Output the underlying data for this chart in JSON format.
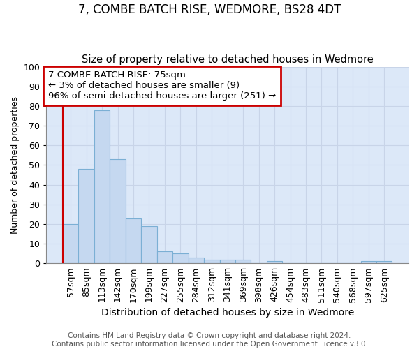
{
  "title": "7, COMBE BATCH RISE, WEDMORE, BS28 4DT",
  "subtitle": "Size of property relative to detached houses in Wedmore",
  "xlabel": "Distribution of detached houses by size in Wedmore",
  "ylabel": "Number of detached properties",
  "categories": [
    "57sqm",
    "85sqm",
    "113sqm",
    "142sqm",
    "170sqm",
    "199sqm",
    "227sqm",
    "255sqm",
    "284sqm",
    "312sqm",
    "341sqm",
    "369sqm",
    "398sqm",
    "426sqm",
    "454sqm",
    "483sqm",
    "511sqm",
    "540sqm",
    "568sqm",
    "597sqm",
    "625sqm"
  ],
  "values": [
    20,
    48,
    78,
    53,
    23,
    19,
    6,
    5,
    3,
    2,
    2,
    2,
    0,
    1,
    0,
    0,
    0,
    0,
    0,
    1,
    1
  ],
  "bar_color": "#c5d8f0",
  "bar_edge_color": "#7bafd4",
  "annotation_box_text": "7 COMBE BATCH RISE: 75sqm\n← 3% of detached houses are smaller (9)\n96% of semi-detached houses are larger (251) →",
  "annotation_box_color": "#ffffff",
  "annotation_box_edge_color": "#cc0000",
  "vline_color": "#cc0000",
  "ylim": [
    0,
    100
  ],
  "yticks": [
    0,
    10,
    20,
    30,
    40,
    50,
    60,
    70,
    80,
    90,
    100
  ],
  "grid_color": "#c8d4e8",
  "bg_color": "#dce8f8",
  "footer": "Contains HM Land Registry data © Crown copyright and database right 2024.\nContains public sector information licensed under the Open Government Licence v3.0.",
  "title_fontsize": 12,
  "subtitle_fontsize": 10.5,
  "xlabel_fontsize": 10,
  "ylabel_fontsize": 9,
  "tick_fontsize": 9,
  "annotation_fontsize": 9.5,
  "footer_fontsize": 7.5
}
